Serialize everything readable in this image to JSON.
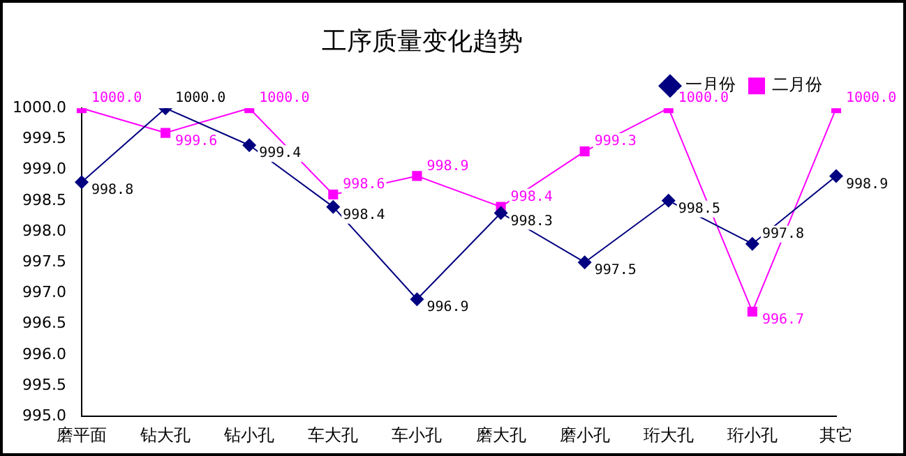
{
  "chart_data": {
    "type": "line",
    "title": "工序质量变化趋势",
    "categories": [
      "磨平面",
      "钻大孔",
      "钻小孔",
      "车大孔",
      "车小孔",
      "磨大孔",
      "磨小孔",
      "珩大孔",
      "珩小孔",
      "其它"
    ],
    "series": [
      {
        "name": "一月份",
        "color": "#000080",
        "marker": "diamond",
        "values": [
          998.8,
          1000.0,
          999.4,
          998.4,
          996.9,
          998.3,
          997.5,
          998.5,
          997.8,
          998.9
        ],
        "value_labels": [
          "998.8",
          "1000.0",
          "999.4",
          "998.4",
          "996.9",
          "998.3",
          "997.5",
          "998.5",
          "997.8",
          "998.9"
        ]
      },
      {
        "name": "二月份",
        "color": "#ff00ff",
        "marker": "square",
        "values": [
          1000.0,
          999.6,
          1000.0,
          998.6,
          998.9,
          998.4,
          999.3,
          1000.0,
          996.7,
          1000.0
        ],
        "value_labels": [
          "1000.0",
          "999.6",
          "1000.0",
          "998.6",
          "998.9",
          "998.4",
          "999.3",
          "1000.0",
          "996.7",
          "1000.0"
        ]
      }
    ],
    "ylim": [
      995,
      1000
    ],
    "yticks": [
      {
        "value": 995,
        "label": "995.0"
      },
      {
        "value": 995.5,
        "label": "995.5"
      },
      {
        "value": 996,
        "label": "996.0"
      },
      {
        "value": 996.5,
        "label": "996.5"
      },
      {
        "value": 997,
        "label": "997.0"
      },
      {
        "value": 997.5,
        "label": "997.5"
      },
      {
        "value": 998,
        "label": "998.0"
      },
      {
        "value": 998.5,
        "label": "998.5"
      },
      {
        "value": 999,
        "label": "999.0"
      },
      {
        "value": 999.5,
        "label": "999.5"
      },
      {
        "value": 1000,
        "label": "1000.0"
      }
    ],
    "grid": false,
    "legend": "top right"
  }
}
